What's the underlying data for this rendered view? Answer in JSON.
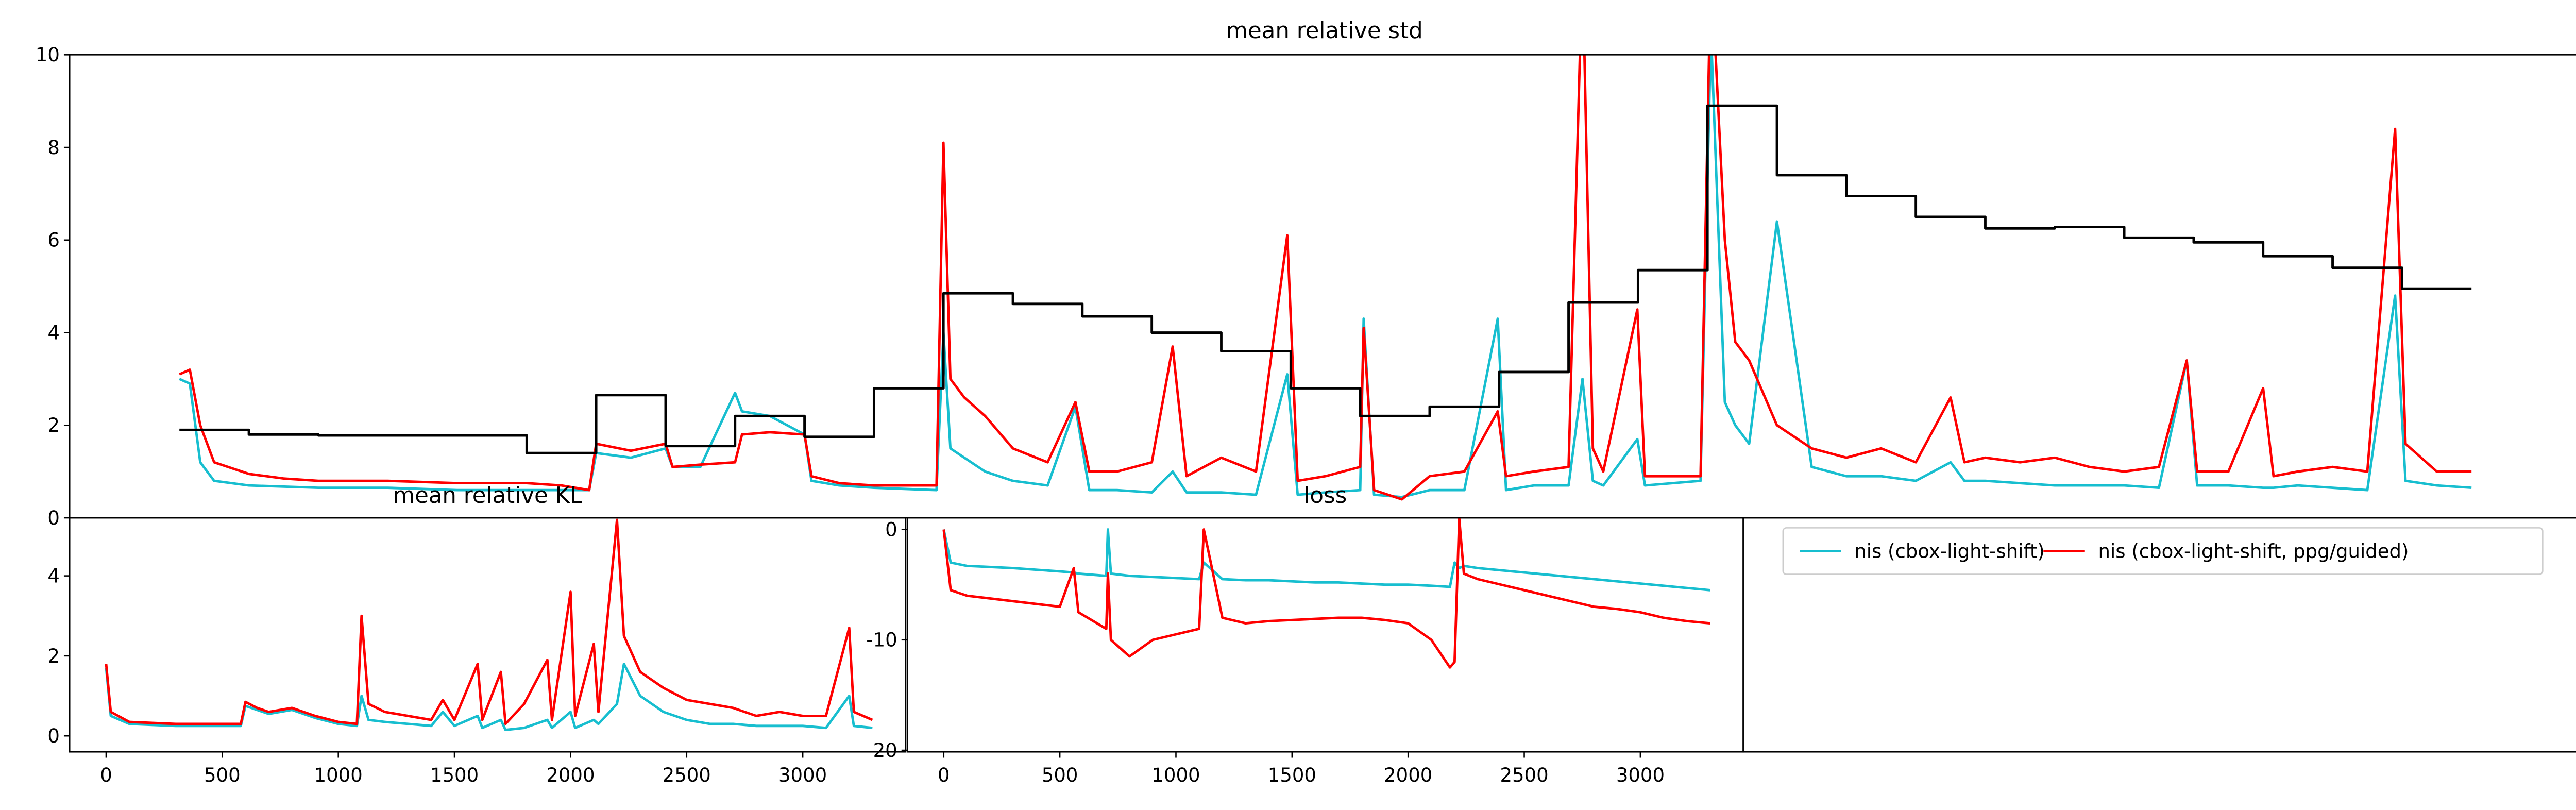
{
  "chart_data": [
    {
      "type": "line",
      "title": "mean relative std",
      "xlim": [
        -158,
        3455
      ],
      "ylim": [
        0,
        10
      ],
      "yticks": [
        0,
        2,
        4,
        6,
        8,
        10
      ],
      "series": [
        {
          "name": "nis (cbox-light-shift)",
          "color": "#17becf",
          "x": [
            0,
            15,
            30,
            50,
            100,
            200,
            300,
            400,
            500,
            590,
            600,
            650,
            700,
            710,
            750,
            800,
            810,
            850,
            900,
            910,
            950,
            1000,
            1090,
            1100,
            1110,
            1130,
            1160,
            1200,
            1250,
            1290,
            1310,
            1350,
            1400,
            1430,
            1450,
            1500,
            1550,
            1595,
            1610,
            1650,
            1700,
            1705,
            1720,
            1760,
            1800,
            1850,
            1898,
            1910,
            1950,
            2000,
            2020,
            2035,
            2050,
            2099,
            2110,
            2150,
            2190,
            2205,
            2225,
            2240,
            2260,
            2300,
            2350,
            2400,
            2450,
            2500,
            2550,
            2570,
            2600,
            2650,
            2700,
            2750,
            2800,
            2850,
            2890,
            2905,
            2950,
            3000,
            3015,
            3050,
            3100,
            3150,
            3190,
            3205,
            3250,
            3300
          ],
          "values": [
            3.0,
            2.9,
            1.2,
            0.8,
            0.7,
            0.65,
            0.65,
            0.6,
            0.6,
            0.6,
            1.4,
            1.3,
            1.5,
            1.1,
            1.1,
            2.7,
            2.3,
            2.2,
            1.8,
            0.8,
            0.7,
            0.65,
            0.6,
            4.0,
            1.5,
            1.3,
            1.0,
            0.8,
            0.7,
            2.4,
            0.6,
            0.6,
            0.55,
            1.0,
            0.55,
            0.55,
            0.5,
            3.1,
            0.5,
            0.55,
            0.6,
            4.3,
            0.5,
            0.45,
            0.6,
            0.6,
            4.3,
            0.6,
            0.7,
            0.7,
            3,
            0.8,
            0.7,
            1.7,
            0.7,
            0.75,
            0.8,
            10.5,
            2.5,
            2.0,
            1.6,
            6.4,
            1.1,
            0.9,
            0.9,
            0.8,
            1.2,
            0.8,
            0.8,
            0.75,
            0.7,
            0.7,
            0.7,
            0.65,
            3.4,
            0.7,
            0.7,
            0.65,
            0.65,
            0.7,
            0.65,
            0.6,
            4.8,
            0.8,
            0.7,
            0.65
          ]
        },
        {
          "name": "nis (cbox-light-shift, ppg/guided)",
          "color": "#ff0000",
          "x": [
            0,
            15,
            30,
            50,
            100,
            150,
            200,
            300,
            400,
            500,
            550,
            590,
            600,
            650,
            700,
            710,
            750,
            800,
            810,
            850,
            900,
            910,
            950,
            1000,
            1090,
            1100,
            1110,
            1130,
            1160,
            1200,
            1250,
            1290,
            1310,
            1350,
            1400,
            1430,
            1450,
            1500,
            1550,
            1595,
            1610,
            1650,
            1700,
            1705,
            1720,
            1760,
            1800,
            1850,
            1898,
            1910,
            1950,
            2000,
            2020,
            2035,
            2050,
            2099,
            2110,
            2150,
            2190,
            2205,
            2225,
            2240,
            2260,
            2300,
            2350,
            2400,
            2450,
            2500,
            2550,
            2570,
            2600,
            2650,
            2700,
            2750,
            2800,
            2850,
            2890,
            2905,
            2950,
            3000,
            3015,
            3050,
            3100,
            3150,
            3190,
            3205,
            3250,
            3300
          ],
          "values": [
            3.1,
            3.2,
            2.0,
            1.2,
            0.95,
            0.85,
            0.8,
            0.8,
            0.75,
            0.75,
            0.7,
            0.6,
            1.6,
            1.45,
            1.6,
            1.1,
            1.15,
            1.2,
            1.8,
            1.85,
            1.8,
            0.9,
            0.75,
            0.7,
            0.7,
            8.1,
            3.0,
            2.6,
            2.2,
            1.5,
            1.2,
            2.5,
            1.0,
            1.0,
            1.2,
            3.7,
            0.9,
            1.3,
            1.0,
            6.1,
            0.8,
            0.9,
            1.1,
            4.1,
            0.6,
            0.4,
            0.9,
            1.0,
            2.3,
            0.9,
            1.0,
            1.1,
            12,
            1.5,
            1.0,
            4.5,
            0.9,
            0.9,
            0.9,
            12,
            6,
            3.8,
            3.4,
            2.0,
            1.5,
            1.3,
            1.5,
            1.2,
            2.6,
            1.2,
            1.3,
            1.2,
            1.3,
            1.1,
            1.0,
            1.1,
            3.4,
            1.0,
            1.0,
            2.8,
            0.9,
            1.0,
            1.1,
            1.0,
            8.4,
            1.6,
            1.0,
            1.0
          ]
        },
        {
          "color": "#000000",
          "drawstyle": "steps-post",
          "x": [
            0,
            100,
            200,
            300,
            400,
            500,
            600,
            700,
            800,
            900,
            1000,
            1100,
            1200,
            1300,
            1400,
            1500,
            1600,
            1700,
            1800,
            1900,
            2000,
            2100,
            2200,
            2300,
            2400,
            2500,
            2600,
            2700,
            2800,
            2900,
            3000,
            3100,
            3200,
            3300
          ],
          "values": [
            1.9,
            1.8,
            1.78,
            1.78,
            1.78,
            1.4,
            2.65,
            1.55,
            2.2,
            1.75,
            2.8,
            4.85,
            4.62,
            4.35,
            4.0,
            3.6,
            2.8,
            2.2,
            2.4,
            3.15,
            4.65,
            5.35,
            8.9,
            7.4,
            6.95,
            6.5,
            6.25,
            6.28,
            6.05,
            5.95,
            5.65,
            5.4,
            4.95,
            4.95
          ]
        }
      ]
    },
    {
      "type": "line",
      "title": "mean relative KL",
      "xlim": [
        -157,
        3443
      ],
      "xticks": [
        0,
        500,
        1000,
        1500,
        2000,
        2500,
        3000
      ],
      "ylim": [
        -0.4,
        5.45
      ],
      "yticks": [
        0,
        2,
        4
      ],
      "series": [
        {
          "name": "nis (cbox-light-shift)",
          "color": "#17becf",
          "x": [
            0,
            20,
            100,
            300,
            500,
            580,
            600,
            650,
            700,
            800,
            900,
            1000,
            1080,
            1100,
            1130,
            1200,
            1300,
            1400,
            1450,
            1500,
            1600,
            1620,
            1700,
            1720,
            1800,
            1900,
            1920,
            2000,
            2020,
            2100,
            2120,
            2200,
            2230,
            2300,
            2400,
            2500,
            2600,
            2700,
            2800,
            2900,
            3000,
            3100,
            3200,
            3220,
            3300
          ],
          "values": [
            1.7,
            0.5,
            0.3,
            0.25,
            0.25,
            0.25,
            0.75,
            0.65,
            0.55,
            0.65,
            0.45,
            0.3,
            0.25,
            1.0,
            0.4,
            0.35,
            0.3,
            0.25,
            0.6,
            0.25,
            0.5,
            0.2,
            0.4,
            0.15,
            0.2,
            0.4,
            0.2,
            0.6,
            0.2,
            0.4,
            0.3,
            0.8,
            1.8,
            1.0,
            0.6,
            0.4,
            0.3,
            0.3,
            0.25,
            0.25,
            0.25,
            0.2,
            1.0,
            0.25,
            0.2
          ]
        },
        {
          "name": "nis (cbox-light-shift, ppg/guided)",
          "color": "#ff0000",
          "x": [
            0,
            20,
            100,
            300,
            500,
            580,
            600,
            650,
            700,
            800,
            900,
            1000,
            1080,
            1100,
            1130,
            1200,
            1300,
            1400,
            1450,
            1500,
            1600,
            1620,
            1700,
            1720,
            1800,
            1900,
            1920,
            2000,
            2020,
            2100,
            2120,
            2200,
            2230,
            2300,
            2400,
            2500,
            2600,
            2700,
            2800,
            2900,
            3000,
            3100,
            3200,
            3220,
            3300
          ],
          "values": [
            1.8,
            0.6,
            0.35,
            0.3,
            0.3,
            0.3,
            0.85,
            0.7,
            0.6,
            0.7,
            0.5,
            0.35,
            0.3,
            3.0,
            0.8,
            0.6,
            0.5,
            0.4,
            0.9,
            0.4,
            1.8,
            0.4,
            1.6,
            0.3,
            0.8,
            1.9,
            0.4,
            3.6,
            0.5,
            2.3,
            0.6,
            5.4,
            2.5,
            1.6,
            1.2,
            0.9,
            0.8,
            0.7,
            0.5,
            0.6,
            0.5,
            0.5,
            2.7,
            0.6,
            0.4
          ]
        }
      ]
    },
    {
      "type": "line",
      "title": "loss",
      "legend": "upper left",
      "xlim": [
        -157,
        3443
      ],
      "xticks": [
        0,
        500,
        1000,
        1500,
        2000,
        2500,
        3000
      ],
      "ylim": [
        -20.15,
        1.05
      ],
      "yticks": [
        0,
        -10,
        -20
      ],
      "series": [
        {
          "name": "nis (cbox-light-shift)",
          "color": "#17becf",
          "x": [
            0,
            30,
            100,
            300,
            500,
            560,
            580,
            700,
            707,
            720,
            800,
            900,
            1000,
            1100,
            1120,
            1200,
            1300,
            1400,
            1500,
            1600,
            1700,
            1800,
            1900,
            2000,
            2100,
            2180,
            2200,
            2220,
            2240,
            2300,
            2400,
            2500,
            2600,
            2700,
            2800,
            2900,
            3000,
            3100,
            3200,
            3300
          ],
          "values": [
            0,
            -3,
            -3.3,
            -3.5,
            -3.8,
            -3.9,
            -4,
            -4.2,
            0,
            -4,
            -4.2,
            -4.3,
            -4.4,
            -4.5,
            -3,
            -4.5,
            -4.6,
            -4.6,
            -4.7,
            -4.8,
            -4.8,
            -4.9,
            -5,
            -5,
            -5.1,
            -5.2,
            -3,
            -3.5,
            -3.3,
            -3.5,
            -3.7,
            -3.9,
            -4.1,
            -4.3,
            -4.5,
            -4.7,
            -4.9,
            -5.1,
            -5.3,
            -5.5
          ]
        },
        {
          "name": "nis (cbox-light-shift, ppg/guided)",
          "color": "#ff0000",
          "x": [
            0,
            30,
            100,
            300,
            500,
            560,
            580,
            700,
            707,
            720,
            800,
            900,
            1000,
            1100,
            1120,
            1200,
            1300,
            1400,
            1500,
            1600,
            1700,
            1800,
            1900,
            2000,
            2100,
            2180,
            2200,
            2220,
            2240,
            2300,
            2400,
            2500,
            2600,
            2700,
            2800,
            2900,
            3000,
            3100,
            3200,
            3300
          ],
          "values": [
            0,
            -5.5,
            -6,
            -6.5,
            -7,
            -3.5,
            -7.5,
            -9,
            -4,
            -10,
            -11.5,
            -10,
            -9.5,
            -9,
            0,
            -8,
            -8.5,
            -8.3,
            -8.2,
            -8.1,
            -8.0,
            -8.0,
            -8.2,
            -8.5,
            -10,
            -12.5,
            -12,
            1,
            -4,
            -4.5,
            -5,
            -5.5,
            -6,
            -6.5,
            -7,
            -7.2,
            -7.5,
            -8,
            -8.3,
            -8.5
          ]
        }
      ]
    }
  ]
}
